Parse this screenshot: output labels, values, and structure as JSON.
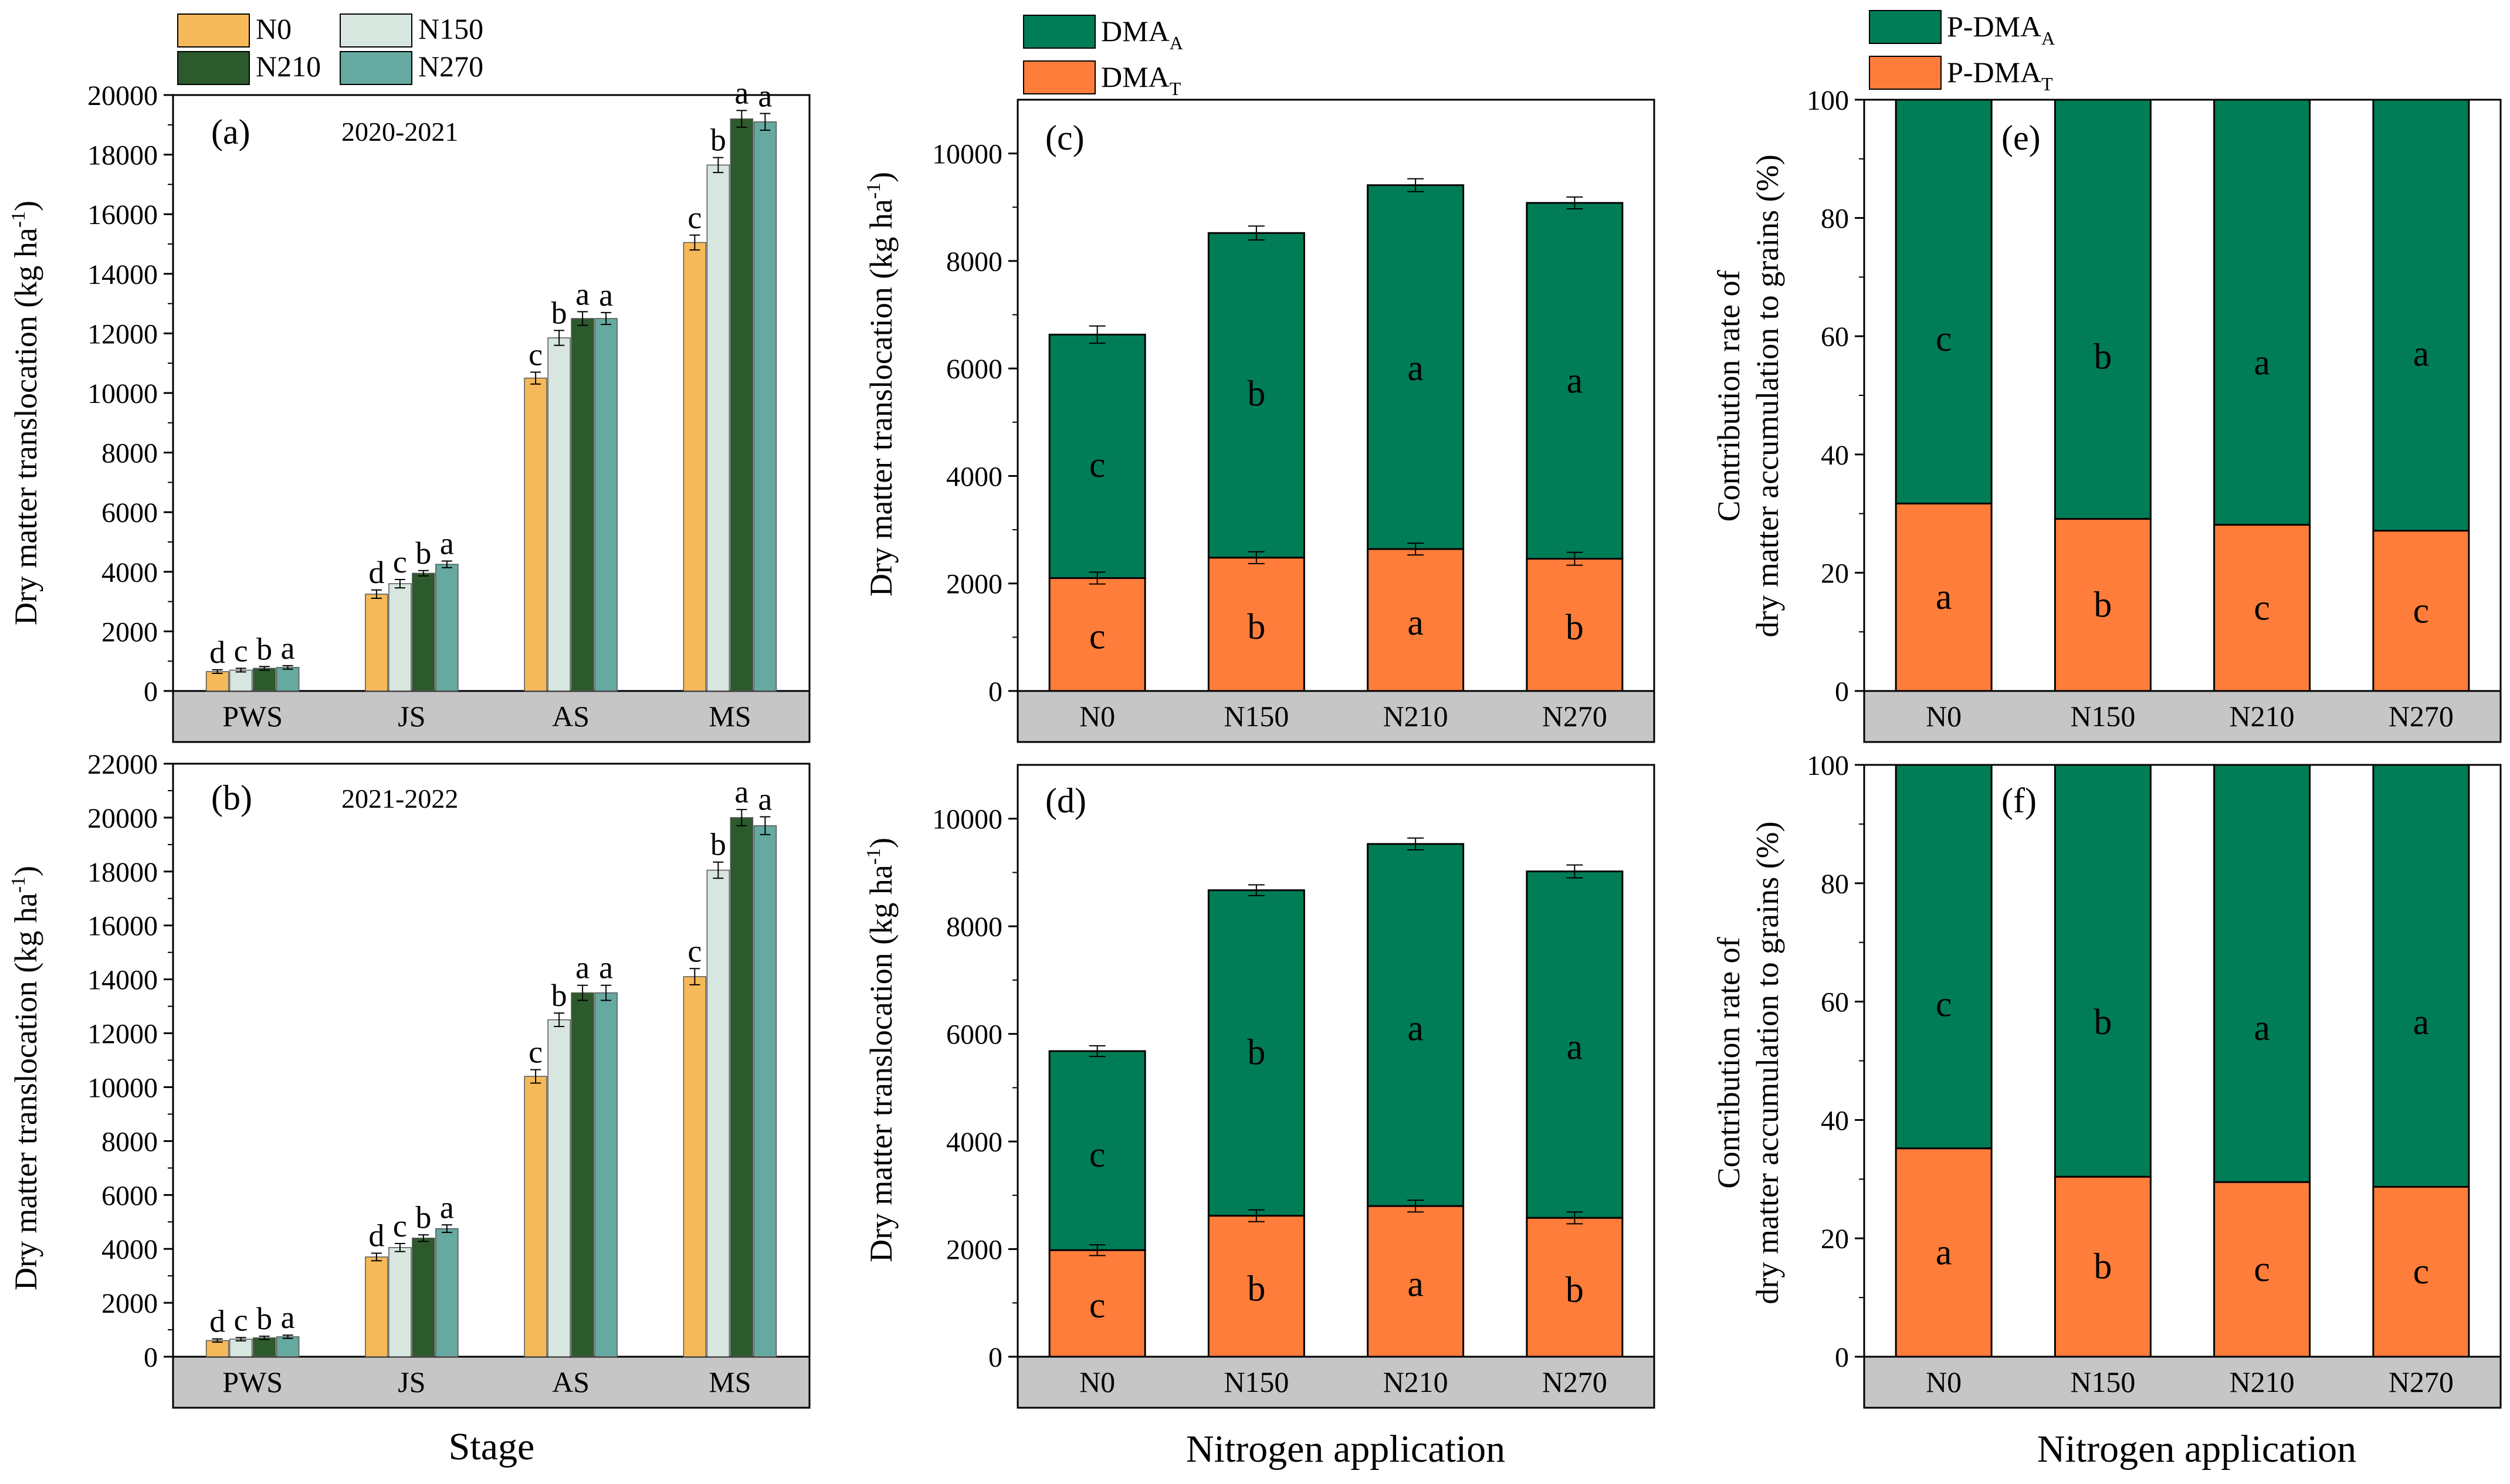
{
  "colors": {
    "N0": "#f6b959",
    "N150": "#d7e6df",
    "N210": "#2c5a2c",
    "N270": "#66a9a0",
    "dma_a": "#007d56",
    "dma_t": "#ff7d3a",
    "strip": "#c6c6c6"
  },
  "labels": {
    "stage": "Stage",
    "nitrogen_application": "Nitrogen application",
    "ylabel_dmt": "Dry matter translocation (kg ha",
    "ylabel_exp": "-1",
    "ylabel_close": ")",
    "contrib_line1": "Contribution rate of",
    "contrib_line2": "dry matter accumulation to grains (%)"
  },
  "legends": {
    "treatments": [
      "N0",
      "N150",
      "N210",
      "N270"
    ],
    "dma": [
      {
        "main": "DMA",
        "sub": "A"
      },
      {
        "main": "DMA",
        "sub": "T"
      }
    ],
    "pdma": [
      {
        "main": "P-DMA",
        "sub": "A"
      },
      {
        "main": "P-DMA",
        "sub": "T"
      }
    ]
  },
  "chart_data": [
    {
      "id": "a",
      "panel_label": "(a)",
      "year": "2020-2021",
      "type": "bar",
      "categories": [
        "PWS",
        "JS",
        "AS",
        "MS"
      ],
      "series_names": [
        "N0",
        "N150",
        "N210",
        "N270"
      ],
      "values": [
        [
          650,
          700,
          760,
          790
        ],
        [
          3250,
          3600,
          3950,
          4250
        ],
        [
          10500,
          11850,
          12500,
          12500
        ],
        [
          15050,
          17650,
          19200,
          19100
        ]
      ],
      "errors": [
        [
          60,
          60,
          60,
          60
        ],
        [
          140,
          140,
          90,
          110
        ],
        [
          200,
          250,
          230,
          200
        ],
        [
          250,
          250,
          280,
          280
        ]
      ],
      "letters": [
        [
          "d",
          "c",
          "b",
          "a"
        ],
        [
          "d",
          "c",
          "b",
          "a"
        ],
        [
          "c",
          "b",
          "a",
          "a"
        ],
        [
          "c",
          "b",
          "a",
          "a"
        ]
      ],
      "ylim": [
        0,
        20000
      ],
      "yticks": [
        0,
        2000,
        4000,
        6000,
        8000,
        10000,
        12000,
        14000,
        16000,
        18000,
        20000
      ]
    },
    {
      "id": "b",
      "panel_label": "(b)",
      "year": "2021-2022",
      "type": "bar",
      "categories": [
        "PWS",
        "JS",
        "AS",
        "MS"
      ],
      "series_names": [
        "N0",
        "N150",
        "N210",
        "N270"
      ],
      "values": [
        [
          600,
          650,
          700,
          740
        ],
        [
          3700,
          4050,
          4400,
          4750
        ],
        [
          10400,
          12500,
          13500,
          13500
        ],
        [
          14100,
          18050,
          20000,
          19700
        ]
      ],
      "errors": [
        [
          60,
          60,
          60,
          60
        ],
        [
          140,
          150,
          120,
          140
        ],
        [
          250,
          250,
          280,
          280
        ],
        [
          300,
          300,
          300,
          330
        ]
      ],
      "letters": [
        [
          "d",
          "c",
          "b",
          "a"
        ],
        [
          "d",
          "c",
          "b",
          "a"
        ],
        [
          "c",
          "b",
          "a",
          "a"
        ],
        [
          "c",
          "b",
          "a",
          "a"
        ]
      ],
      "ylim": [
        0,
        22000
      ],
      "yticks": [
        0,
        2000,
        4000,
        6000,
        8000,
        10000,
        12000,
        14000,
        16000,
        18000,
        20000,
        22000
      ]
    },
    {
      "id": "c",
      "panel_label": "(c)",
      "type": "stacked-bar",
      "categories": [
        "N0",
        "N150",
        "N210",
        "N270"
      ],
      "DMA_T": [
        2100,
        2480,
        2640,
        2460
      ],
      "DMA_T_err": [
        110,
        110,
        110,
        120
      ],
      "total": [
        6630,
        8520,
        9410,
        9080
      ],
      "total_err": [
        160,
        130,
        120,
        110
      ],
      "letters_T": [
        "c",
        "b",
        "a",
        "b"
      ],
      "letters_A": [
        "c",
        "b",
        "a",
        "a"
      ],
      "letters_A_value": [
        4200,
        5530,
        6000,
        5770
      ],
      "ylim": [
        0,
        11000
      ],
      "yticks": [
        0,
        2000,
        4000,
        6000,
        8000,
        10000
      ]
    },
    {
      "id": "d",
      "panel_label": "(d)",
      "type": "stacked-bar",
      "categories": [
        "N0",
        "N150",
        "N210",
        "N270"
      ],
      "DMA_T": [
        1980,
        2620,
        2800,
        2580
      ],
      "DMA_T_err": [
        100,
        110,
        110,
        110
      ],
      "total": [
        5680,
        8670,
        9530,
        9020
      ],
      "total_err": [
        100,
        100,
        110,
        120
      ],
      "letters_T": [
        "c",
        "b",
        "a",
        "b"
      ],
      "letters_A": [
        "c",
        "b",
        "a",
        "a"
      ],
      "letters_A_value": [
        3750,
        5650,
        6100,
        5750
      ],
      "ylim": [
        0,
        11000
      ],
      "yticks": [
        0,
        2000,
        4000,
        6000,
        8000,
        10000
      ]
    },
    {
      "id": "e",
      "panel_label": "(e)",
      "type": "stacked-bar-percent",
      "categories": [
        "N0",
        "N150",
        "N210",
        "N270"
      ],
      "P_DMA_T": [
        31.7,
        29.1,
        28.1,
        27.1
      ],
      "letters_T": [
        "a",
        "b",
        "c",
        "c"
      ],
      "letters_A": [
        "c",
        "b",
        "a",
        "a"
      ],
      "letters_A_value": [
        59.5,
        56.5,
        55.5,
        57.0
      ],
      "ylim": [
        0,
        100
      ],
      "yticks": [
        0,
        20,
        40,
        60,
        80,
        100
      ]
    },
    {
      "id": "f",
      "panel_label": "(f)",
      "type": "stacked-bar-percent",
      "categories": [
        "N0",
        "N150",
        "N210",
        "N270"
      ],
      "P_DMA_T": [
        35.2,
        30.4,
        29.5,
        28.7
      ],
      "letters_T": [
        "a",
        "b",
        "c",
        "c"
      ],
      "letters_A": [
        "c",
        "b",
        "a",
        "a"
      ],
      "letters_A_value": [
        59.5,
        56.5,
        55.5,
        56.5
      ],
      "ylim": [
        0,
        100
      ],
      "yticks": [
        0,
        20,
        40,
        60,
        80,
        100
      ]
    }
  ]
}
